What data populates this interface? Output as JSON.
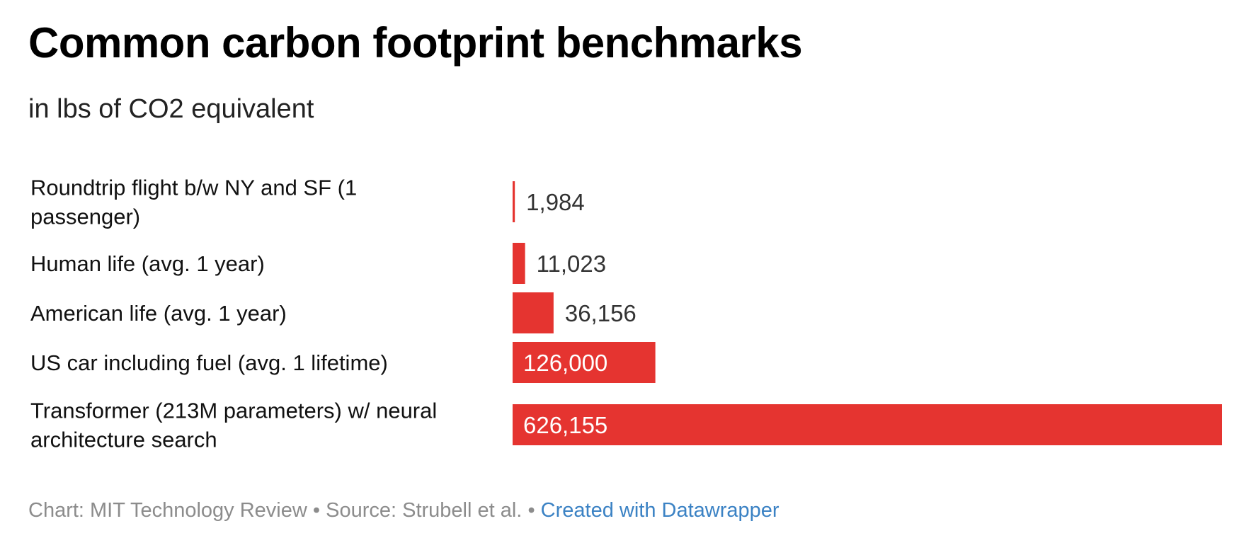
{
  "title": "Common carbon footprint benchmarks",
  "subtitle": "in lbs of CO2 equivalent",
  "footer": {
    "chart_credit": "Chart: MIT Technology Review",
    "separator": "•",
    "source": "Source: Strubell et al.",
    "link": "Created with Datawrapper"
  },
  "colors": {
    "bar": "#e53430",
    "label_inside": "#ffffff",
    "label_outside": "#333333",
    "category_text": "#111111"
  },
  "chart_data": {
    "type": "bar",
    "orientation": "horizontal",
    "categories": [
      [
        "Roundtrip flight b/w NY and SF (1",
        "passenger)"
      ],
      [
        "Human life (avg. 1 year)"
      ],
      [
        "American life (avg. 1 year)"
      ],
      [
        "US car including fuel (avg. 1 lifetime)"
      ],
      [
        "Transformer (213M parameters) w/ neural",
        "architecture search"
      ]
    ],
    "values": [
      1984,
      11023,
      36156,
      126000,
      626155
    ],
    "value_labels": [
      "1,984",
      "11,023",
      "36,156",
      "126,000",
      "626,155"
    ],
    "xlim": [
      0,
      626155
    ],
    "grid": false,
    "legend": "none"
  }
}
